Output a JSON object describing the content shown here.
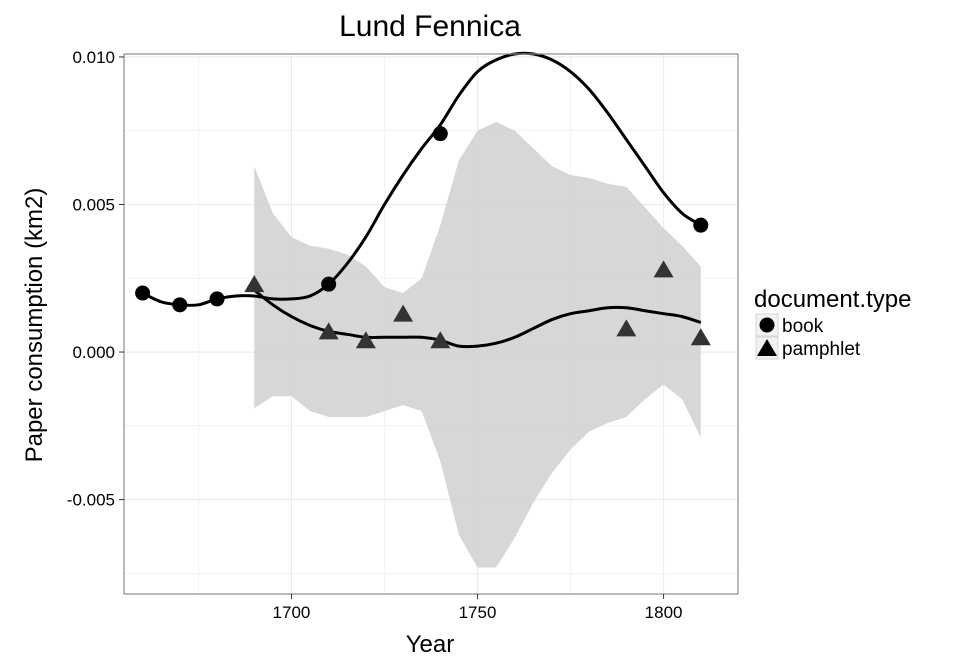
{
  "chart_data": {
    "type": "scatter",
    "title": "Lund Fennica",
    "xlabel": "Year",
    "ylabel": "Paper consumption (km2)",
    "xlim": [
      1655,
      1820
    ],
    "ylim": [
      -0.0082,
      0.0101
    ],
    "x_ticks": [
      1700,
      1750,
      1800
    ],
    "x_tick_labels": [
      "1700",
      "1750",
      "1800"
    ],
    "y_ticks": [
      -0.005,
      0.0,
      0.005,
      0.01
    ],
    "y_tick_labels": [
      "-0.005",
      "0.000",
      "0.005",
      "0.010"
    ],
    "grid": true,
    "legend": {
      "title": "document.type",
      "placement": "right",
      "entries": [
        {
          "label": "book",
          "shape": "circle"
        },
        {
          "label": "pamphlet",
          "shape": "triangle"
        }
      ]
    },
    "series": [
      {
        "name": "book",
        "shape": "circle",
        "color": "#000000",
        "points": [
          [
            1660,
            0.002
          ],
          [
            1670,
            0.0016
          ],
          [
            1680,
            0.0018
          ],
          [
            1710,
            0.0023
          ],
          [
            1740,
            0.0074
          ],
          [
            1810,
            0.0043
          ]
        ],
        "smooth": [
          [
            1660,
            0.002
          ],
          [
            1665,
            0.0017
          ],
          [
            1670,
            0.0016
          ],
          [
            1675,
            0.0016
          ],
          [
            1680,
            0.0018
          ],
          [
            1685,
            0.0019
          ],
          [
            1690,
            0.0019
          ],
          [
            1695,
            0.0018
          ],
          [
            1700,
            0.0018
          ],
          [
            1705,
            0.0019
          ],
          [
            1710,
            0.0023
          ],
          [
            1715,
            0.003
          ],
          [
            1720,
            0.0039
          ],
          [
            1725,
            0.005
          ],
          [
            1730,
            0.006
          ],
          [
            1735,
            0.0069
          ],
          [
            1740,
            0.0077
          ],
          [
            1745,
            0.0087
          ],
          [
            1750,
            0.0095
          ],
          [
            1755,
            0.0099
          ],
          [
            1760,
            0.0101
          ],
          [
            1765,
            0.0101
          ],
          [
            1770,
            0.0099
          ],
          [
            1775,
            0.0095
          ],
          [
            1780,
            0.0089
          ],
          [
            1785,
            0.0081
          ],
          [
            1790,
            0.0072
          ],
          [
            1795,
            0.0063
          ],
          [
            1800,
            0.0054
          ],
          [
            1805,
            0.0047
          ],
          [
            1810,
            0.0043
          ]
        ]
      },
      {
        "name": "pamphlet",
        "shape": "triangle",
        "color": "#333333",
        "points": [
          [
            1690,
            0.0023
          ],
          [
            1710,
            0.0007
          ],
          [
            1720,
            0.0004
          ],
          [
            1730,
            0.0013
          ],
          [
            1740,
            0.0004
          ],
          [
            1790,
            0.0008
          ],
          [
            1800,
            0.0028
          ],
          [
            1810,
            0.0005
          ]
        ],
        "smooth": [
          [
            1690,
            0.0021
          ],
          [
            1695,
            0.0016
          ],
          [
            1700,
            0.0012
          ],
          [
            1705,
            0.0009
          ],
          [
            1710,
            0.0007
          ],
          [
            1715,
            0.0006
          ],
          [
            1720,
            0.0005
          ],
          [
            1725,
            0.0005
          ],
          [
            1730,
            0.0005
          ],
          [
            1735,
            0.0005
          ],
          [
            1740,
            0.0004
          ],
          [
            1745,
            0.0002
          ],
          [
            1750,
            0.0002
          ],
          [
            1755,
            0.0003
          ],
          [
            1760,
            0.0005
          ],
          [
            1765,
            0.0008
          ],
          [
            1770,
            0.0011
          ],
          [
            1775,
            0.0013
          ],
          [
            1780,
            0.0014
          ],
          [
            1785,
            0.0015
          ],
          [
            1790,
            0.0015
          ],
          [
            1795,
            0.0014
          ],
          [
            1800,
            0.0013
          ],
          [
            1805,
            0.0012
          ],
          [
            1810,
            0.001
          ]
        ],
        "ci_upper": [
          [
            1690,
            0.0063
          ],
          [
            1695,
            0.0047
          ],
          [
            1700,
            0.0039
          ],
          [
            1705,
            0.0036
          ],
          [
            1710,
            0.0035
          ],
          [
            1715,
            0.0033
          ],
          [
            1720,
            0.0029
          ],
          [
            1725,
            0.0022
          ],
          [
            1730,
            0.002
          ],
          [
            1735,
            0.0025
          ],
          [
            1740,
            0.0043
          ],
          [
            1745,
            0.0065
          ],
          [
            1750,
            0.0075
          ],
          [
            1755,
            0.0078
          ],
          [
            1760,
            0.0075
          ],
          [
            1765,
            0.0069
          ],
          [
            1770,
            0.0063
          ],
          [
            1775,
            0.006
          ],
          [
            1780,
            0.0059
          ],
          [
            1785,
            0.0057
          ],
          [
            1790,
            0.0056
          ],
          [
            1795,
            0.0049
          ],
          [
            1800,
            0.0042
          ],
          [
            1805,
            0.0036
          ],
          [
            1810,
            0.0029
          ]
        ],
        "ci_lower": [
          [
            1690,
            -0.0019
          ],
          [
            1695,
            -0.0015
          ],
          [
            1700,
            -0.0015
          ],
          [
            1705,
            -0.002
          ],
          [
            1710,
            -0.0022
          ],
          [
            1715,
            -0.0022
          ],
          [
            1720,
            -0.0022
          ],
          [
            1725,
            -0.002
          ],
          [
            1730,
            -0.0018
          ],
          [
            1735,
            -0.002
          ],
          [
            1740,
            -0.0037
          ],
          [
            1745,
            -0.0062
          ],
          [
            1750,
            -0.0073
          ],
          [
            1755,
            -0.0073
          ],
          [
            1760,
            -0.0063
          ],
          [
            1765,
            -0.0051
          ],
          [
            1770,
            -0.0041
          ],
          [
            1775,
            -0.0033
          ],
          [
            1780,
            -0.0027
          ],
          [
            1785,
            -0.0024
          ],
          [
            1790,
            -0.0022
          ],
          [
            1795,
            -0.0016
          ],
          [
            1800,
            -0.0011
          ],
          [
            1805,
            -0.0016
          ],
          [
            1810,
            -0.0029
          ]
        ]
      }
    ]
  },
  "colors": {
    "panel_border": "#8c8c8c",
    "grid": "#ebebeb",
    "ribbon": "#d3d3d3",
    "line": "#000000",
    "book_point": "#000000",
    "pamphlet_point": "#333333"
  }
}
